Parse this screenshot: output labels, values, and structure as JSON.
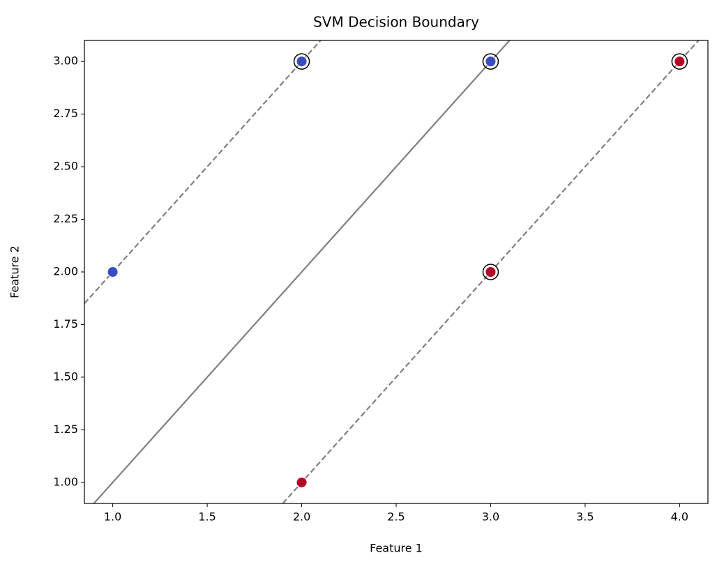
{
  "chart_data": {
    "type": "scatter",
    "title": "SVM Decision Boundary",
    "x_label": "Feature 1",
    "y_label": "Feature 2",
    "series": [
      {
        "color": "#3b4cc0",
        "x": [
          1,
          2,
          3
        ],
        "values": [
          2,
          3,
          3
        ]
      },
      {
        "color": "#b40426",
        "x": [
          2,
          3,
          4
        ],
        "values": [
          1,
          2,
          3
        ]
      }
    ],
    "support_vectors": {
      "color": "#000000",
      "x": [
        2,
        3,
        3,
        4
      ],
      "values": [
        3,
        3,
        2,
        3
      ]
    },
    "lines": [
      {
        "style": "dashed",
        "color": "#808080",
        "x": [
          0.85,
          2.1
        ],
        "values": [
          1.85,
          3.1
        ]
      },
      {
        "style": "solid",
        "color": "#808080",
        "x": [
          0.9,
          3.1
        ],
        "values": [
          0.9,
          3.1
        ]
      },
      {
        "style": "dashed",
        "color": "#808080",
        "x": [
          1.9,
          4.1
        ],
        "values": [
          0.9,
          3.1
        ]
      }
    ],
    "xlim": [
      0.85,
      4.15
    ],
    "xticks": [
      {
        "value": 1,
        "label": "1.0"
      },
      1.5,
      {
        "value": 2,
        "label": "2.0"
      },
      2.5,
      {
        "value": 3,
        "label": "3.0"
      },
      3.5,
      {
        "value": 4,
        "label": "4.0"
      }
    ],
    "ylim": [
      0.9,
      3.1
    ],
    "yticks": [
      {
        "value": 1,
        "label": "1.00"
      },
      {
        "value": 1.25,
        "label": "1.25"
      },
      {
        "value": 1.5,
        "label": "1.50"
      },
      {
        "value": 1.75,
        "label": "1.75"
      },
      {
        "value": 2,
        "label": "2.00"
      },
      {
        "value": 2.25,
        "label": "2.25"
      },
      {
        "value": 2.5,
        "label": "2.50"
      },
      {
        "value": 2.75,
        "label": "2.75"
      },
      {
        "value": 3,
        "label": "3.00"
      }
    ]
  }
}
